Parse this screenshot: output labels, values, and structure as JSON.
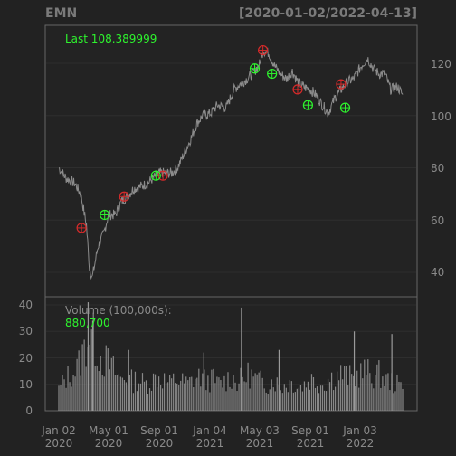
{
  "header": {
    "symbol": "EMN",
    "date_range": "[2020-01-02/2022-04-13]"
  },
  "price_panel": {
    "last_label": "Last 108.389999",
    "y_ticks": [
      "120",
      "100",
      "80",
      "60",
      "40"
    ]
  },
  "volume_panel": {
    "label": "Volume (100,000s):",
    "value": "880,700",
    "y_ticks": [
      "40",
      "30",
      "20",
      "10",
      "0"
    ]
  },
  "x_ticks": [
    {
      "line1": "Jan 02",
      "line2": "2020"
    },
    {
      "line1": "May 01",
      "line2": "2020"
    },
    {
      "line1": "Sep 01",
      "line2": "2020"
    },
    {
      "line1": "Jan 04",
      "line2": "2021"
    },
    {
      "line1": "May 03",
      "line2": "2021"
    },
    {
      "line1": "Sep 01",
      "line2": "2021"
    },
    {
      "line1": "Jan 03",
      "line2": "2022"
    }
  ],
  "colors": {
    "background": "#222222",
    "price_line": "#8c8c8c",
    "buy_marker": "#2ef32e",
    "sell_marker": "#d62a2a",
    "volume_bar": "#9a9a9a"
  },
  "chart_data": {
    "type": "line",
    "title": "EMN",
    "date_range": "[2020-01-02/2022-04-13]",
    "x": [
      "2020-01-02",
      "2020-01-20",
      "2020-02-10",
      "2020-02-24",
      "2020-03-09",
      "2020-03-16",
      "2020-03-23",
      "2020-04-06",
      "2020-04-20",
      "2020-05-01",
      "2020-05-18",
      "2020-06-01",
      "2020-06-15",
      "2020-07-01",
      "2020-07-20",
      "2020-08-03",
      "2020-08-17",
      "2020-09-01",
      "2020-09-15",
      "2020-10-01",
      "2020-10-15",
      "2020-11-02",
      "2020-11-16",
      "2020-12-01",
      "2020-12-15",
      "2021-01-04",
      "2021-01-20",
      "2021-02-10",
      "2021-03-01",
      "2021-03-15",
      "2021-04-01",
      "2021-04-15",
      "2021-05-03",
      "2021-05-10",
      "2021-05-24",
      "2021-06-07",
      "2021-06-21",
      "2021-07-06",
      "2021-07-20",
      "2021-08-02",
      "2021-08-16",
      "2021-09-01",
      "2021-09-15",
      "2021-10-01",
      "2021-10-15",
      "2021-11-01",
      "2021-11-15",
      "2021-12-01",
      "2021-12-15",
      "2022-01-03",
      "2022-01-18",
      "2022-02-01",
      "2022-02-15",
      "2022-03-01",
      "2022-03-15",
      "2022-04-01",
      "2022-04-13"
    ],
    "series": [
      {
        "values": [
          80,
          76,
          74,
          70,
          58,
          42,
          38,
          50,
          55,
          62,
          62,
          67,
          69,
          72,
          73,
          74,
          76,
          78,
          78,
          78,
          80,
          86,
          91,
          97,
          100,
          101,
          104,
          103,
          110,
          112,
          114,
          116,
          120,
          125,
          124,
          119,
          116,
          114,
          117,
          113,
          111,
          110,
          108,
          104,
          101,
          107,
          110,
          113,
          114,
          119,
          122,
          118,
          116,
          116,
          110,
          111,
          108
        ]
      }
    ],
    "buy_signals": [
      {
        "x": "2020-04-22",
        "y": 62
      },
      {
        "x": "2020-08-24",
        "y": 77
      },
      {
        "x": "2021-04-20",
        "y": 118
      },
      {
        "x": "2021-06-01",
        "y": 116
      },
      {
        "x": "2021-08-27",
        "y": 104
      },
      {
        "x": "2021-11-25",
        "y": 103
      }
    ],
    "sell_signals": [
      {
        "x": "2020-02-26",
        "y": 57
      },
      {
        "x": "2020-06-08",
        "y": 69
      },
      {
        "x": "2020-09-10",
        "y": 77
      },
      {
        "x": "2021-05-10",
        "y": 125
      },
      {
        "x": "2021-08-02",
        "y": 110
      },
      {
        "x": "2021-11-15",
        "y": 112
      }
    ],
    "ylim": [
      35,
      132
    ],
    "volume": {
      "unit": "100,000s",
      "ylim": [
        0,
        40
      ],
      "values": [
        8,
        12,
        14,
        16,
        22,
        30,
        25,
        20,
        18,
        15,
        12,
        13,
        11,
        12,
        10,
        11,
        13,
        12,
        10,
        12,
        11,
        10,
        12,
        13,
        11,
        12,
        10,
        11,
        13,
        11,
        12,
        14,
        12,
        11,
        10,
        12,
        9,
        10,
        11,
        9,
        10,
        12,
        11,
        10,
        12,
        13,
        14,
        13,
        12,
        14,
        15,
        13,
        14,
        12,
        11,
        10,
        9
      ],
      "spikes": [
        {
          "x": "2020-03-13",
          "y": 41
        },
        {
          "x": "2020-03-24",
          "y": 34
        },
        {
          "x": "2020-06-19",
          "y": 23
        },
        {
          "x": "2020-12-18",
          "y": 22
        },
        {
          "x": "2021-03-19",
          "y": 39
        },
        {
          "x": "2021-06-18",
          "y": 23
        },
        {
          "x": "2021-12-17",
          "y": 30
        },
        {
          "x": "2022-03-18",
          "y": 29
        }
      ]
    },
    "x_tick_labels": [
      "Jan 02 2020",
      "May 01 2020",
      "Sep 01 2020",
      "Jan 04 2021",
      "May 03 2021",
      "Sep 01 2021",
      "Jan 03 2022"
    ],
    "y_ticks": [
      40,
      60,
      80,
      100,
      120
    ],
    "grid": true
  }
}
